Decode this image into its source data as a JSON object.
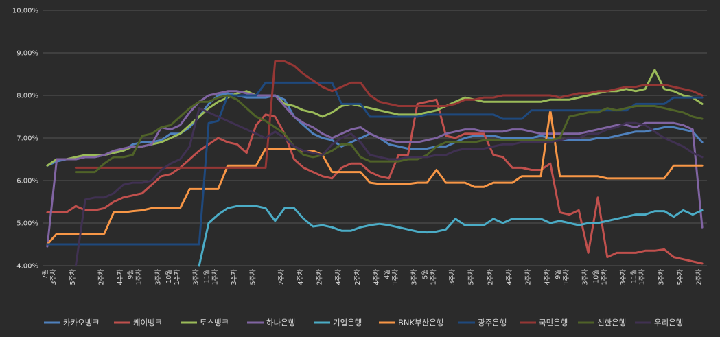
{
  "chart_data": {
    "type": "line",
    "title": "",
    "xlabel": "",
    "ylabel": "",
    "ylim": [
      4.0,
      10.0
    ],
    "yticks": [
      "4.00%",
      "5.00%",
      "6.00%",
      "7.00%",
      "8.00%",
      "9.00%",
      "10.00%"
    ],
    "grid": true,
    "legend_position": "bottom",
    "x_ticks": [
      {
        "i": 1,
        "lines": [
          "3주차",
          "7월"
        ]
      },
      {
        "i": 3,
        "lines": [
          "5주차"
        ]
      },
      {
        "i": 6,
        "lines": [
          "2주차"
        ]
      },
      {
        "i": 8,
        "lines": [
          "4주차"
        ]
      },
      {
        "i": 10,
        "lines": [
          "1주차",
          "9월"
        ]
      },
      {
        "i": 12,
        "lines": [
          "3주차"
        ]
      },
      {
        "i": 14,
        "lines": [
          "1주차",
          "10월"
        ]
      },
      {
        "i": 16,
        "lines": [
          "3주차"
        ]
      },
      {
        "i": 18,
        "lines": [
          "1주차",
          "11월"
        ]
      },
      {
        "i": 20,
        "lines": [
          "3주차"
        ]
      },
      {
        "i": 22,
        "lines": [
          "5주차"
        ]
      },
      {
        "i": 25,
        "lines": [
          "2주차"
        ]
      },
      {
        "i": 27,
        "lines": [
          "4주차"
        ]
      },
      {
        "i": 29,
        "lines": [
          "2주차"
        ]
      },
      {
        "i": 31,
        "lines": [
          "4주차"
        ]
      },
      {
        "i": 33,
        "lines": [
          "2주차"
        ]
      },
      {
        "i": 35,
        "lines": [
          "4주차"
        ]
      },
      {
        "i": 37,
        "lines": [
          "1주차",
          "4월"
        ]
      },
      {
        "i": 39,
        "lines": [
          "3주차"
        ]
      },
      {
        "i": 41,
        "lines": [
          "1주차",
          "5월"
        ]
      },
      {
        "i": 43,
        "lines": [
          "3주차"
        ]
      },
      {
        "i": 45,
        "lines": [
          "5주차"
        ]
      },
      {
        "i": 47,
        "lines": [
          "2주차"
        ]
      },
      {
        "i": 49,
        "lines": [
          "4주차"
        ]
      },
      {
        "i": 51,
        "lines": [
          "2주차"
        ]
      },
      {
        "i": 53,
        "lines": [
          "4주차"
        ]
      },
      {
        "i": 55,
        "lines": [
          "1주차",
          "9월"
        ]
      },
      {
        "i": 57,
        "lines": [
          "3주차"
        ]
      },
      {
        "i": 59,
        "lines": [
          "1주차",
          "10월"
        ]
      },
      {
        "i": 61,
        "lines": [
          "3주차"
        ]
      },
      {
        "i": 63,
        "lines": [
          "1주차",
          "11월"
        ]
      },
      {
        "i": 65,
        "lines": [
          "3주차"
        ]
      },
      {
        "i": 67,
        "lines": [
          "5주차"
        ]
      },
      {
        "i": 69,
        "lines": [
          "2주차"
        ]
      }
    ],
    "x_count": 70,
    "series": [
      {
        "name": "카카오뱅크",
        "color": "#4f81bd",
        "values": [
          6.35,
          6.45,
          6.5,
          6.5,
          6.55,
          6.55,
          6.6,
          6.65,
          6.7,
          6.85,
          6.9,
          6.9,
          6.95,
          7.1,
          7.1,
          7.25,
          7.5,
          7.8,
          8.0,
          8.05,
          8.0,
          7.95,
          7.95,
          7.95,
          8.0,
          7.9,
          7.5,
          7.3,
          7.1,
          7.0,
          6.95,
          6.8,
          6.9,
          7.0,
          7.1,
          7.0,
          6.85,
          6.8,
          6.75,
          6.75,
          6.75,
          6.8,
          6.8,
          6.9,
          7.0,
          7.05,
          7.05,
          7.05,
          7.0,
          7.0,
          7.0,
          7.0,
          7.05,
          7.0,
          6.95,
          6.95,
          6.95,
          6.95,
          7.0,
          7.0,
          7.05,
          7.1,
          7.15,
          7.15,
          7.2,
          7.25,
          7.25,
          7.2,
          7.15,
          6.9
        ]
      },
      {
        "name": "케이뱅크",
        "color": "#c0504d",
        "values": [
          5.25,
          5.25,
          5.25,
          5.4,
          5.3,
          5.3,
          5.35,
          5.5,
          5.6,
          5.65,
          5.7,
          5.9,
          6.1,
          6.15,
          6.3,
          6.5,
          6.7,
          6.85,
          7.0,
          6.9,
          6.85,
          6.65,
          7.3,
          7.55,
          7.5,
          7.1,
          6.5,
          6.3,
          6.2,
          6.1,
          6.05,
          6.3,
          6.4,
          6.4,
          6.2,
          6.1,
          6.05,
          6.6,
          6.6,
          7.8,
          7.85,
          7.9,
          7.05,
          7.0,
          7.1,
          7.1,
          7.1,
          6.6,
          6.55,
          6.3,
          6.3,
          6.25,
          6.25,
          6.4,
          5.25,
          5.2,
          5.3,
          4.3,
          5.6,
          4.2,
          4.3,
          4.3,
          4.3,
          4.35,
          4.35,
          4.38,
          4.2,
          4.15,
          4.1,
          4.05
        ]
      },
      {
        "name": "토스뱅크",
        "color": "#9bbb59",
        "values": [
          6.35,
          6.5,
          6.5,
          6.55,
          6.6,
          6.6,
          6.6,
          6.65,
          6.7,
          6.8,
          6.8,
          6.85,
          6.9,
          7.0,
          7.1,
          7.3,
          7.5,
          7.7,
          7.85,
          7.95,
          8.05,
          8.1,
          8.0,
          8.0,
          8.0,
          7.8,
          7.75,
          7.65,
          7.6,
          7.5,
          7.6,
          7.75,
          7.8,
          7.75,
          7.7,
          7.65,
          7.6,
          7.55,
          7.55,
          7.55,
          7.6,
          7.65,
          7.75,
          7.85,
          7.95,
          7.9,
          7.85,
          7.85,
          7.85,
          7.85,
          7.85,
          7.85,
          7.85,
          7.9,
          7.9,
          7.9,
          7.95,
          8.0,
          8.05,
          8.1,
          8.1,
          8.15,
          8.1,
          8.15,
          8.6,
          8.15,
          8.1,
          8.0,
          7.95,
          7.8
        ]
      },
      {
        "name": "하나은행",
        "color": "#8064a2",
        "values": [
          4.45,
          6.5,
          6.5,
          6.5,
          6.55,
          6.55,
          6.6,
          6.7,
          6.75,
          6.8,
          6.8,
          6.85,
          7.25,
          7.2,
          7.3,
          7.6,
          7.85,
          8.0,
          8.05,
          8.1,
          8.1,
          8.05,
          8.0,
          8.0,
          8.0,
          7.75,
          7.5,
          7.35,
          7.25,
          7.1,
          7.0,
          7.1,
          7.2,
          7.25,
          7.1,
          7.0,
          6.95,
          6.9,
          6.9,
          6.9,
          6.95,
          7.0,
          7.1,
          7.15,
          7.2,
          7.2,
          7.15,
          7.15,
          7.15,
          7.2,
          7.2,
          7.15,
          7.1,
          7.1,
          7.1,
          7.1,
          7.1,
          7.15,
          7.2,
          7.25,
          7.3,
          7.3,
          7.25,
          7.35,
          7.35,
          7.35,
          7.35,
          7.3,
          7.2,
          4.9
        ]
      },
      {
        "name": "기업은행",
        "color": "#4bacc6",
        "values": [
          null,
          null,
          null,
          null,
          null,
          null,
          null,
          null,
          null,
          null,
          null,
          null,
          null,
          null,
          null,
          null,
          4.0,
          5.0,
          5.2,
          5.35,
          5.4,
          5.4,
          5.4,
          5.35,
          5.05,
          5.35,
          5.35,
          5.1,
          4.92,
          4.95,
          4.9,
          4.82,
          4.82,
          4.9,
          4.95,
          4.98,
          4.95,
          4.9,
          4.85,
          4.8,
          4.78,
          4.8,
          4.85,
          5.1,
          4.95,
          4.95,
          4.95,
          5.1,
          5.0,
          5.1,
          5.1,
          5.1,
          5.1,
          5.0,
          5.05,
          5.0,
          4.95,
          5.0,
          5.0,
          5.05,
          5.1,
          5.15,
          5.2,
          5.2,
          5.28,
          5.28,
          5.15,
          5.3,
          5.2,
          5.3
        ]
      },
      {
        "name": "BNK부산은행",
        "color": "#f79646",
        "values": [
          4.5,
          4.75,
          4.75,
          4.75,
          4.75,
          4.75,
          4.75,
          5.25,
          5.25,
          5.28,
          5.3,
          5.35,
          5.35,
          5.35,
          5.35,
          5.8,
          5.8,
          5.8,
          5.8,
          6.35,
          6.35,
          6.35,
          6.35,
          6.75,
          6.75,
          6.75,
          6.75,
          6.7,
          6.7,
          6.6,
          6.2,
          6.2,
          6.2,
          6.2,
          5.95,
          5.92,
          5.92,
          5.92,
          5.92,
          5.95,
          5.95,
          6.25,
          5.95,
          5.95,
          5.95,
          5.85,
          5.85,
          5.95,
          5.95,
          5.95,
          6.1,
          6.1,
          6.1,
          7.65,
          6.1,
          6.1,
          6.1,
          6.1,
          6.1,
          6.05,
          6.05,
          6.05,
          6.05,
          6.05,
          6.05,
          6.05,
          6.35,
          6.35,
          6.35,
          6.35
        ]
      },
      {
        "name": "광주은행",
        "color": "#1f497d",
        "values": [
          4.5,
          4.5,
          4.5,
          4.5,
          4.5,
          4.5,
          4.5,
          4.5,
          4.5,
          4.5,
          4.5,
          4.5,
          4.5,
          4.5,
          4.5,
          4.5,
          4.5,
          7.35,
          7.4,
          8.0,
          8.0,
          8.0,
          8.0,
          8.3,
          8.3,
          8.3,
          8.3,
          8.3,
          8.3,
          8.3,
          8.3,
          7.8,
          7.8,
          7.8,
          7.5,
          7.5,
          7.5,
          7.5,
          7.5,
          7.5,
          7.55,
          7.55,
          7.55,
          7.55,
          7.55,
          7.55,
          7.55,
          7.55,
          7.45,
          7.45,
          7.45,
          7.65,
          7.65,
          7.65,
          7.65,
          7.65,
          7.65,
          7.65,
          7.65,
          7.65,
          7.65,
          7.65,
          7.8,
          7.8,
          7.8,
          7.8,
          7.95,
          7.95,
          7.95,
          7.95
        ]
      },
      {
        "name": "국민은행",
        "color": "#953735",
        "values": [
          4.0,
          null,
          null,
          6.3,
          6.3,
          6.3,
          6.3,
          6.3,
          6.3,
          6.3,
          6.3,
          6.3,
          6.3,
          6.3,
          6.3,
          6.3,
          6.3,
          6.3,
          6.3,
          6.3,
          6.3,
          6.3,
          6.3,
          6.3,
          8.8,
          8.8,
          8.7,
          8.5,
          8.35,
          8.2,
          8.1,
          8.2,
          8.3,
          8.3,
          8.0,
          7.85,
          7.8,
          7.75,
          7.75,
          7.75,
          7.75,
          7.75,
          7.75,
          7.8,
          7.9,
          7.9,
          7.95,
          7.95,
          8.0,
          8.0,
          8.0,
          8.0,
          8.0,
          8.0,
          7.95,
          8.0,
          8.05,
          8.05,
          8.1,
          8.1,
          8.15,
          8.2,
          8.2,
          8.25,
          8.25,
          8.25,
          8.2,
          8.15,
          8.1,
          8.0
        ]
      },
      {
        "name": "신한은행",
        "color": "#4f6228",
        "values": [
          null,
          null,
          null,
          6.2,
          6.2,
          6.2,
          6.4,
          6.55,
          6.55,
          6.6,
          7.05,
          7.1,
          7.25,
          7.3,
          7.5,
          7.7,
          7.85,
          7.85,
          7.95,
          8.0,
          7.9,
          7.7,
          7.5,
          7.4,
          7.25,
          7.1,
          6.8,
          6.6,
          6.55,
          6.6,
          6.7,
          6.85,
          6.85,
          6.55,
          6.45,
          6.45,
          6.45,
          6.45,
          6.5,
          6.5,
          6.6,
          6.8,
          6.9,
          6.9,
          6.9,
          6.9,
          6.95,
          6.95,
          6.95,
          6.95,
          6.95,
          6.95,
          6.95,
          6.95,
          7.0,
          7.5,
          7.55,
          7.6,
          7.6,
          7.7,
          7.65,
          7.7,
          7.75,
          7.75,
          7.75,
          7.7,
          7.65,
          7.6,
          7.5,
          7.45
        ]
      },
      {
        "name": "우리은행",
        "color": "#403152",
        "values": [
          null,
          null,
          null,
          4.0,
          5.55,
          5.6,
          5.6,
          5.7,
          5.9,
          5.95,
          5.95,
          6.0,
          6.25,
          6.4,
          6.5,
          6.8,
          7.7,
          7.6,
          7.5,
          7.4,
          7.3,
          7.2,
          7.1,
          7.0,
          7.15,
          7.0,
          6.8,
          6.7,
          6.65,
          6.6,
          6.85,
          7.0,
          7.1,
          6.9,
          6.6,
          6.55,
          6.5,
          6.5,
          6.55,
          6.55,
          6.55,
          6.6,
          6.6,
          6.7,
          6.75,
          6.75,
          6.75,
          6.8,
          6.85,
          6.85,
          6.9,
          6.9,
          6.9,
          6.9,
          6.95,
          7.0,
          7.0,
          7.1,
          7.1,
          7.2,
          7.25,
          7.35,
          7.35,
          7.3,
          7.15,
          7.0,
          6.9,
          6.8,
          6.65,
          6.55
        ]
      }
    ]
  }
}
